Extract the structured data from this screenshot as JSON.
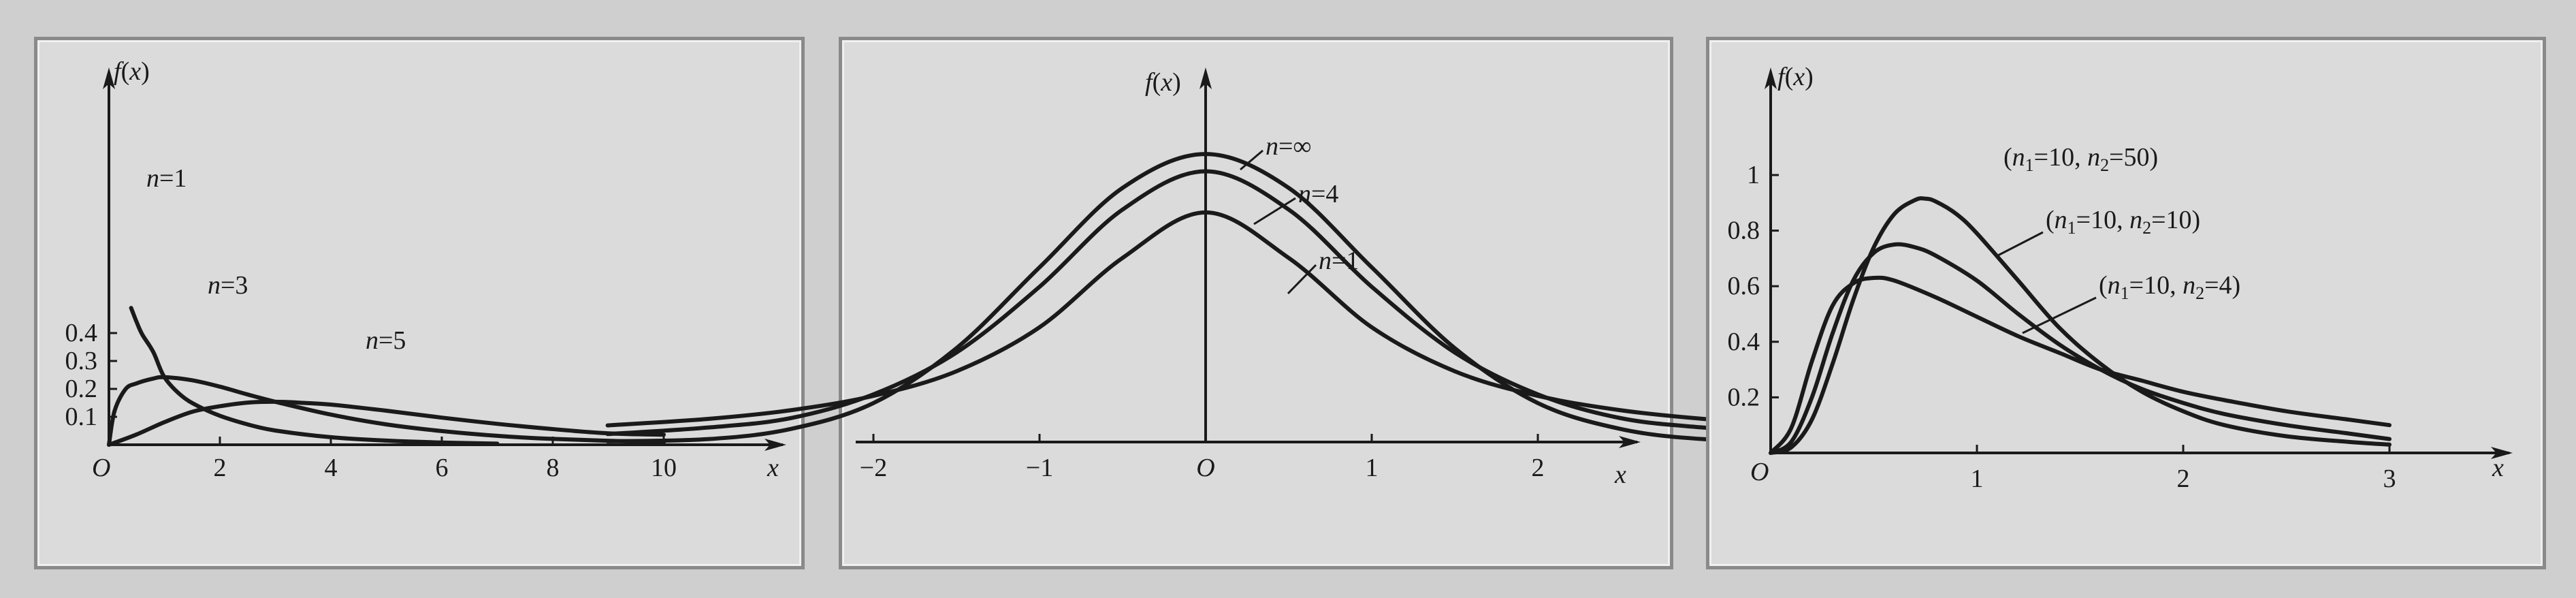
{
  "chart_data": [
    {
      "type": "line",
      "ylabel": "f(x)",
      "xlabel": "x",
      "origin_label": "O",
      "xlim": [
        0,
        11
      ],
      "ylim": [
        0,
        0.5
      ],
      "xticks": [
        2,
        4,
        6,
        8,
        10
      ],
      "xtick_labels": [
        "2",
        "4",
        "6",
        "8",
        "10"
      ],
      "yticks": [
        0.1,
        0.2,
        0.3,
        0.4
      ],
      "ytick_labels": [
        "0.1",
        "0.2",
        "0.3",
        "0.4"
      ],
      "series": [
        {
          "name": "n=1",
          "x": [
            0.4,
            0.5,
            0.6,
            0.8,
            1.0,
            1.3,
            1.6,
            2.0,
            2.5,
            3.0,
            4.0,
            5.0,
            6.0,
            7.0
          ],
          "y": [
            0.49,
            0.439,
            0.395,
            0.332,
            0.242,
            0.177,
            0.139,
            0.104,
            0.073,
            0.051,
            0.027,
            0.015,
            0.008,
            0.004
          ]
        },
        {
          "name": "n=3",
          "x": [
            0,
            0.1,
            0.3,
            0.5,
            0.8,
            1.0,
            1.5,
            2.0,
            2.5,
            3.0,
            4.0,
            5.0,
            6.0,
            7.0,
            8.0,
            10.0
          ],
          "y": [
            0,
            0.12,
            0.199,
            0.22,
            0.237,
            0.242,
            0.231,
            0.208,
            0.18,
            0.154,
            0.108,
            0.073,
            0.049,
            0.032,
            0.021,
            0.008
          ]
        },
        {
          "name": "n=5",
          "x": [
            0,
            0.5,
            1.0,
            1.5,
            2.0,
            2.5,
            3.0,
            3.5,
            4.0,
            5.0,
            6.0,
            7.0,
            8.0,
            9.0,
            10.0
          ],
          "y": [
            0,
            0.037,
            0.081,
            0.118,
            0.138,
            0.151,
            0.154,
            0.15,
            0.144,
            0.122,
            0.097,
            0.075,
            0.056,
            0.041,
            0.036
          ]
        }
      ]
    },
    {
      "type": "line",
      "ylabel": "f(x)",
      "xlabel": "x",
      "origin_label": "O",
      "xlim": [
        -3.7,
        5.3
      ],
      "ylim": [
        0,
        0.5
      ],
      "xticks": [
        -2,
        -1,
        1,
        2
      ],
      "xtick_labels": [
        "−2",
        "−1",
        "1",
        "2"
      ],
      "series": [
        {
          "name": "n=∞",
          "x": [
            -3.6,
            -3.0,
            -2.5,
            -2.0,
            -1.5,
            -1.0,
            -0.5,
            0,
            0.5,
            1.0,
            1.5,
            2.0,
            2.5,
            3.0,
            3.6
          ],
          "y": [
            0.001,
            0.004,
            0.018,
            0.054,
            0.13,
            0.242,
            0.352,
            0.399,
            0.352,
            0.242,
            0.13,
            0.054,
            0.018,
            0.004,
            0.001
          ]
        },
        {
          "name": "n=4",
          "x": [
            -3.6,
            -3.0,
            -2.5,
            -2.0,
            -1.5,
            -1.0,
            -0.5,
            0,
            0.5,
            1.0,
            1.5,
            2.0,
            2.5,
            3.0,
            3.6
          ],
          "y": [
            0.011,
            0.02,
            0.033,
            0.066,
            0.124,
            0.215,
            0.322,
            0.375,
            0.322,
            0.215,
            0.124,
            0.066,
            0.033,
            0.02,
            0.011
          ]
        },
        {
          "name": "n=1",
          "x": [
            -3.6,
            -3.0,
            -2.5,
            -2.0,
            -1.5,
            -1.0,
            -0.5,
            0,
            0.5,
            1.0,
            1.5,
            2.0,
            2.5,
            3.0,
            3.6
          ],
          "y": [
            0.023,
            0.032,
            0.044,
            0.064,
            0.098,
            0.159,
            0.255,
            0.318,
            0.255,
            0.159,
            0.098,
            0.064,
            0.044,
            0.032,
            0.023
          ]
        }
      ]
    },
    {
      "type": "line",
      "ylabel": "f(x)",
      "xlabel": "x",
      "origin_label": "O",
      "xlim": [
        0,
        3.4
      ],
      "ylim": [
        0,
        1.15
      ],
      "xticks": [
        1,
        2,
        3
      ],
      "xtick_labels": [
        "1",
        "2",
        "3"
      ],
      "yticks": [
        0.2,
        0.4,
        0.6,
        0.8,
        1.0
      ],
      "ytick_labels": [
        "0.2",
        "0.4",
        "0.6",
        "0.8",
        "1"
      ],
      "series": [
        {
          "name": "(n1=10, n2=50)",
          "label_main": "(n",
          "label_a": "1",
          "label_b": "=10,  n",
          "label_c": "2",
          "label_d": "=50)",
          "x": [
            0,
            0.1,
            0.2,
            0.3,
            0.4,
            0.5,
            0.6,
            0.7,
            0.75,
            0.8,
            0.9,
            1.0,
            1.2,
            1.4,
            1.6,
            1.8,
            2.0,
            2.2,
            2.5,
            2.8,
            3.0
          ],
          "y": [
            0,
            0.02,
            0.12,
            0.32,
            0.55,
            0.74,
            0.86,
            0.91,
            0.915,
            0.905,
            0.86,
            0.79,
            0.62,
            0.45,
            0.32,
            0.22,
            0.15,
            0.1,
            0.06,
            0.04,
            0.03
          ]
        },
        {
          "name": "(n1=10, n2=10)",
          "label_main": "(n",
          "label_a": "1",
          "label_b": "=10,  n",
          "label_c": "2",
          "label_d": "=10)",
          "x": [
            0,
            0.1,
            0.2,
            0.3,
            0.4,
            0.5,
            0.6,
            0.7,
            0.8,
            1.0,
            1.2,
            1.4,
            1.6,
            1.8,
            2.0,
            2.2,
            2.5,
            2.8,
            3.0
          ],
          "y": [
            0,
            0.04,
            0.2,
            0.43,
            0.62,
            0.72,
            0.75,
            0.74,
            0.71,
            0.62,
            0.5,
            0.39,
            0.3,
            0.23,
            0.18,
            0.14,
            0.1,
            0.07,
            0.05
          ]
        },
        {
          "name": "(n1=10, n2=4)",
          "label_main": "(n",
          "label_a": "1",
          "label_b": "=10,  n",
          "label_c": "2",
          "label_d": "=4)",
          "x": [
            0,
            0.1,
            0.2,
            0.3,
            0.4,
            0.5,
            0.6,
            0.8,
            1.0,
            1.2,
            1.4,
            1.6,
            1.8,
            2.0,
            2.2,
            2.5,
            2.8,
            3.0
          ],
          "y": [
            0,
            0.09,
            0.33,
            0.53,
            0.61,
            0.63,
            0.62,
            0.56,
            0.49,
            0.42,
            0.36,
            0.3,
            0.26,
            0.22,
            0.19,
            0.15,
            0.12,
            0.1
          ]
        }
      ]
    }
  ]
}
